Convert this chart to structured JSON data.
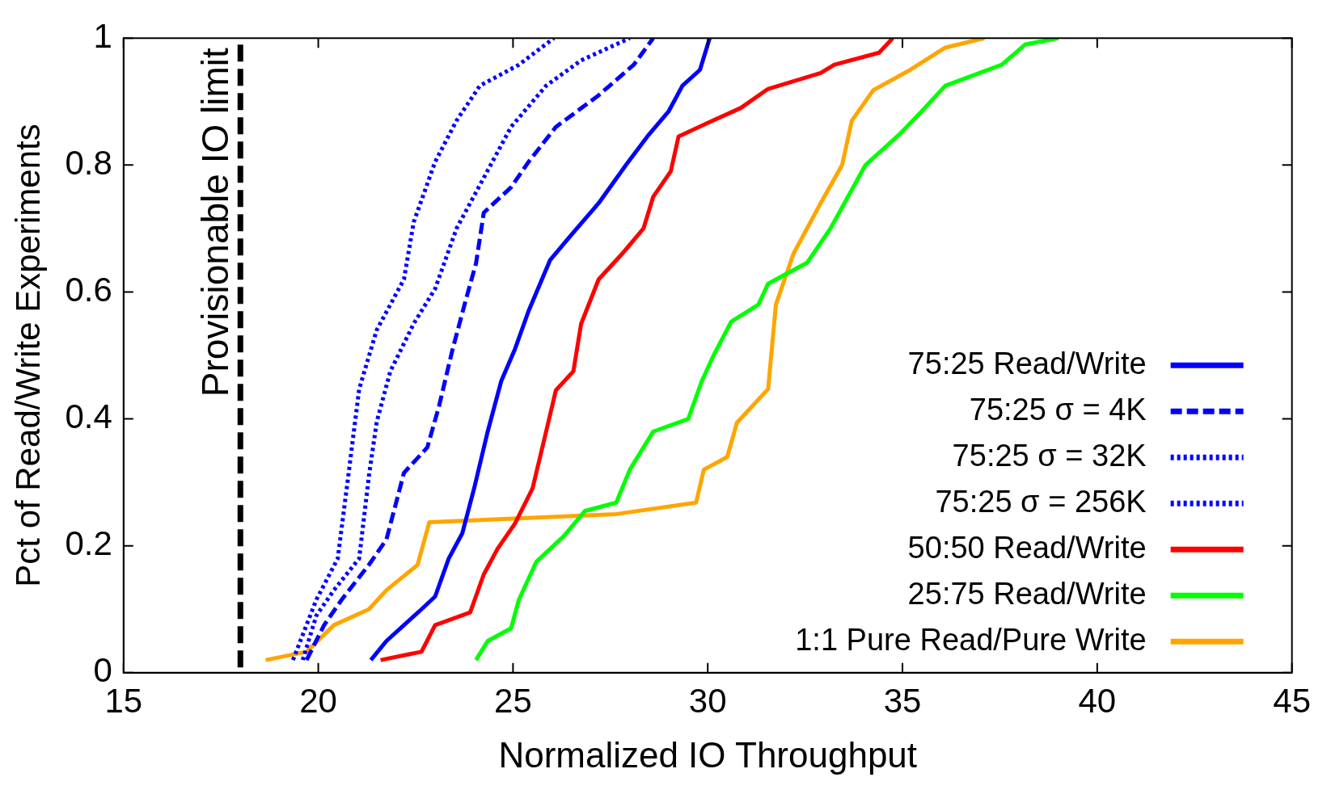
{
  "chart_data": {
    "type": "line",
    "xlabel": "Normalized IO Throughput",
    "ylabel": "Pct of Read/Write Experiments",
    "xlim": [
      15,
      45
    ],
    "xticks": [
      15,
      20,
      25,
      30,
      35,
      40,
      45
    ],
    "ylim": [
      0,
      1
    ],
    "yticks": [
      0,
      0.2,
      0.4,
      0.6,
      0.8,
      1
    ],
    "grid": false,
    "legend": "bottom right",
    "marker": "none",
    "ref_lines": [
      {
        "axis": "x",
        "value": 18,
        "label": "Provisionable IO limit",
        "color": "#000000",
        "line_style": "dashed"
      }
    ],
    "series": [
      {
        "name": "75:25 Read/Write",
        "color": "#0000ff",
        "line_style": "solid",
        "x": [
          21.35,
          21.75,
          22.2,
          22.65,
          23.0,
          23.35,
          23.7,
          24.0,
          24.35,
          24.7,
          25.05,
          25.4,
          25.95,
          26.5,
          27.2,
          27.9,
          28.45,
          29.0,
          29.35,
          29.8,
          30.05
        ],
        "values": [
          0.02,
          0.05,
          0.075,
          0.1,
          0.12,
          0.18,
          0.22,
          0.29,
          0.38,
          0.46,
          0.51,
          0.57,
          0.65,
          0.69,
          0.74,
          0.8,
          0.845,
          0.885,
          0.925,
          0.95,
          1.0
        ]
      },
      {
        "name": "75:25 σ = 4K",
        "color": "#0000ff",
        "line_style": "dashed",
        "x": [
          19.7,
          20.15,
          20.6,
          21.3,
          21.75,
          22.2,
          22.8,
          23.1,
          23.45,
          23.8,
          24.05,
          24.25,
          24.95,
          25.4,
          26.1,
          27.2,
          28.1,
          28.6
        ],
        "values": [
          0.02,
          0.075,
          0.115,
          0.17,
          0.21,
          0.315,
          0.355,
          0.42,
          0.51,
          0.59,
          0.645,
          0.725,
          0.765,
          0.805,
          0.86,
          0.91,
          0.958,
          1.0
        ]
      },
      {
        "name": "75:25 σ = 32K",
        "color": "#0000ff",
        "line_style": "dotted",
        "x": [
          19.6,
          19.95,
          20.4,
          21.05,
          21.3,
          21.5,
          21.85,
          22.45,
          23.0,
          23.55,
          24.25,
          24.95,
          25.85,
          26.75,
          28.0
        ],
        "values": [
          0.02,
          0.09,
          0.13,
          0.18,
          0.31,
          0.395,
          0.475,
          0.55,
          0.605,
          0.7,
          0.78,
          0.86,
          0.925,
          0.965,
          1.0
        ]
      },
      {
        "name": "75:25 σ = 256K",
        "color": "#0000ff",
        "line_style": "dotted",
        "x": [
          19.35,
          19.95,
          20.5,
          20.75,
          21.05,
          21.5,
          22.2,
          22.45,
          23.0,
          23.55,
          24.15,
          25.15,
          26.05
        ],
        "values": [
          0.02,
          0.115,
          0.18,
          0.3,
          0.447,
          0.54,
          0.62,
          0.71,
          0.805,
          0.87,
          0.925,
          0.958,
          1.0
        ]
      },
      {
        "name": "50:50 Read/Write",
        "color": "#ff0000",
        "line_style": "solid",
        "x": [
          21.6,
          22.65,
          23.0,
          23.9,
          24.25,
          24.6,
          25.05,
          25.5,
          25.85,
          26.1,
          26.55,
          26.75,
          27.2,
          27.8,
          28.35,
          28.6,
          29.05,
          29.25,
          29.95,
          30.85,
          31.55,
          32.9,
          33.25,
          34.4,
          34.75
        ],
        "values": [
          0.02,
          0.033,
          0.075,
          0.095,
          0.155,
          0.195,
          0.235,
          0.29,
          0.38,
          0.445,
          0.475,
          0.55,
          0.62,
          0.66,
          0.7,
          0.75,
          0.79,
          0.845,
          0.865,
          0.89,
          0.92,
          0.945,
          0.958,
          0.977,
          1.0
        ]
      },
      {
        "name": "25:75 Read/Write",
        "color": "#00ff00",
        "line_style": "solid",
        "x": [
          24.05,
          24.35,
          24.95,
          25.15,
          25.6,
          26.3,
          26.85,
          27.65,
          28.0,
          28.6,
          29.5,
          29.85,
          30.15,
          30.6,
          31.3,
          31.55,
          32.55,
          33.15,
          34.05,
          34.95,
          35.5,
          36.1,
          37.55,
          38.15,
          39.0
        ],
        "values": [
          0.02,
          0.05,
          0.07,
          0.115,
          0.175,
          0.215,
          0.255,
          0.268,
          0.32,
          0.38,
          0.4,
          0.46,
          0.5,
          0.553,
          0.58,
          0.613,
          0.646,
          0.7,
          0.8,
          0.85,
          0.885,
          0.925,
          0.958,
          0.99,
          1.0
        ]
      },
      {
        "name": "1:1 Pure Read/Pure Write",
        "color": "#ffa500",
        "line_style": "solid",
        "x": [
          18.65,
          19.7,
          20.4,
          21.3,
          21.75,
          22.55,
          22.85,
          27.65,
          29.7,
          29.9,
          30.5,
          30.75,
          31.55,
          31.75,
          32.2,
          32.9,
          33.45,
          33.7,
          34.25,
          35.2,
          36.1,
          37.1
        ],
        "values": [
          0.02,
          0.033,
          0.075,
          0.1,
          0.13,
          0.17,
          0.237,
          0.25,
          0.268,
          0.32,
          0.34,
          0.394,
          0.447,
          0.58,
          0.66,
          0.74,
          0.8,
          0.87,
          0.918,
          0.95,
          0.985,
          1.0
        ]
      }
    ]
  }
}
